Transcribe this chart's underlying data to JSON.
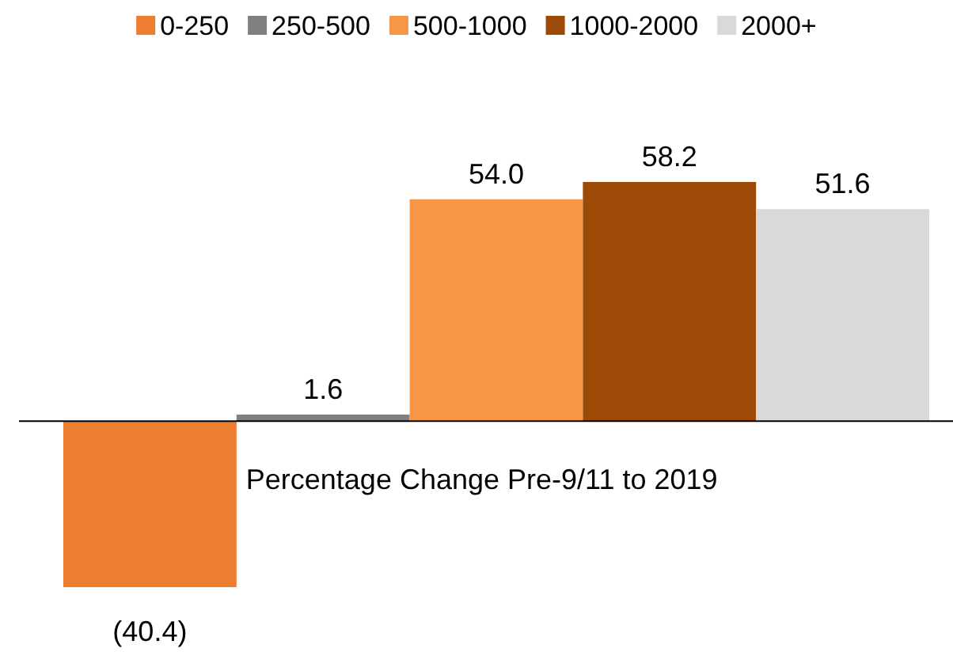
{
  "chart_data": {
    "type": "bar",
    "xlabel": "Percentage Change Pre-9/11 to 2019",
    "categories": [
      null
    ],
    "legend": "top",
    "data_labels": true,
    "series": [
      {
        "name": "0-250",
        "color": "#ed7d31",
        "values": [
          -40.4
        ],
        "value_labels": [
          "(40.4)"
        ]
      },
      {
        "name": "250-500",
        "color": "#7f7f7f",
        "values": [
          1.6
        ],
        "value_labels": [
          "1.6"
        ]
      },
      {
        "name": "500-1000",
        "color": "#f79646",
        "values": [
          54.0
        ],
        "value_labels": [
          "54.0"
        ]
      },
      {
        "name": "1000-2000",
        "color": "#9c4a06",
        "values": [
          58.2
        ],
        "value_labels": [
          "58.2"
        ]
      },
      {
        "name": "2000+",
        "color": "#d9d9d9",
        "values": [
          51.6
        ],
        "value_labels": [
          "51.6"
        ]
      }
    ]
  }
}
